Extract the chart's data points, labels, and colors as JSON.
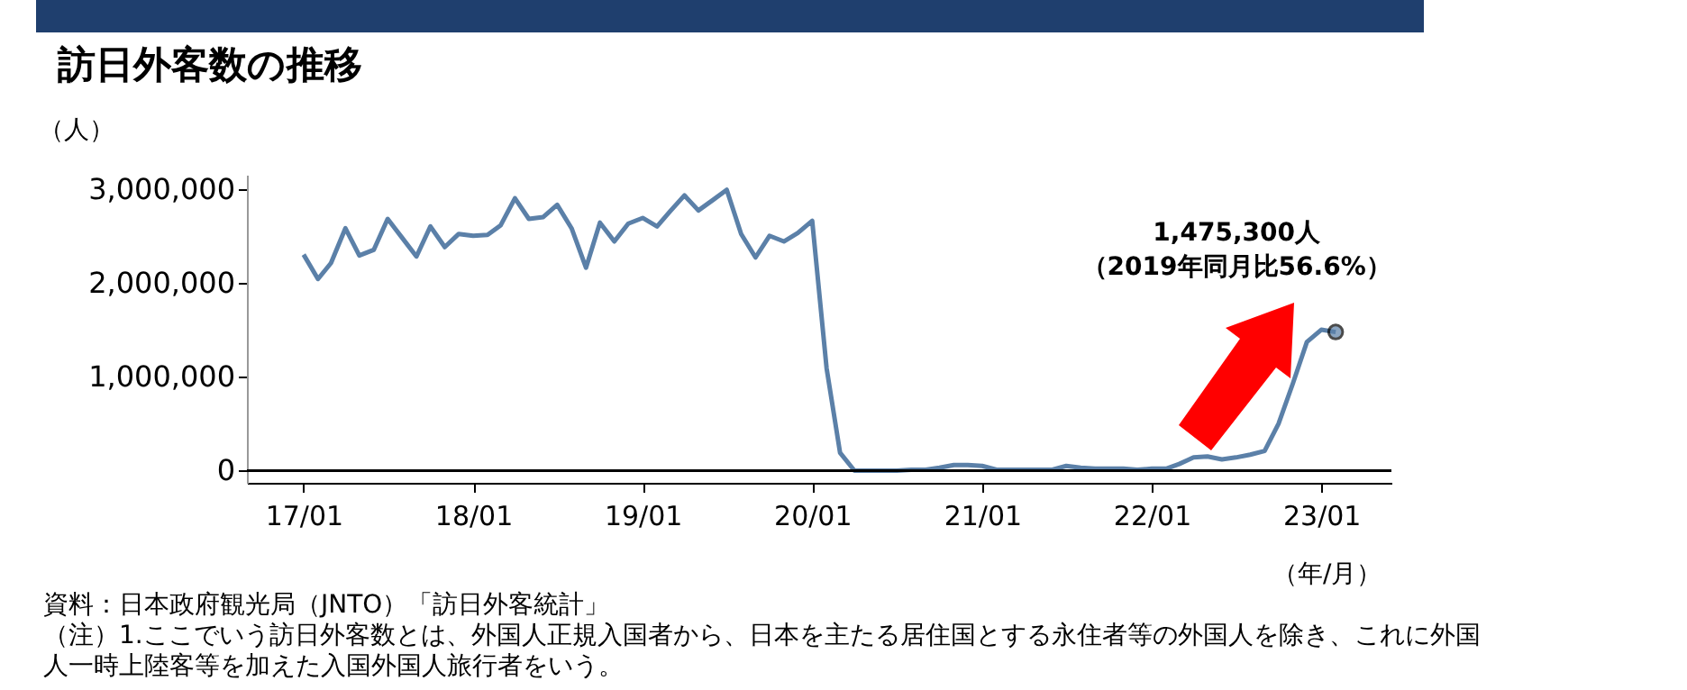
{
  "chart_data": {
    "type": "line",
    "title": "訪日外客数の推移",
    "ylabel": "（人）",
    "xlabel": "（年/月）",
    "x": [
      "2017-01",
      "2017-02",
      "2017-03",
      "2017-04",
      "2017-05",
      "2017-06",
      "2017-07",
      "2017-08",
      "2017-09",
      "2017-10",
      "2017-11",
      "2017-12",
      "2018-01",
      "2018-02",
      "2018-03",
      "2018-04",
      "2018-05",
      "2018-06",
      "2018-07",
      "2018-08",
      "2018-09",
      "2018-10",
      "2018-11",
      "2018-12",
      "2019-01",
      "2019-02",
      "2019-03",
      "2019-04",
      "2019-05",
      "2019-06",
      "2019-07",
      "2019-08",
      "2019-09",
      "2019-10",
      "2019-11",
      "2019-12",
      "2020-01",
      "2020-02",
      "2020-03",
      "2020-04",
      "2020-05",
      "2020-06",
      "2020-07",
      "2020-08",
      "2020-09",
      "2020-10",
      "2020-11",
      "2020-12",
      "2021-01",
      "2021-02",
      "2021-03",
      "2021-04",
      "2021-05",
      "2021-06",
      "2021-07",
      "2021-08",
      "2021-09",
      "2021-10",
      "2021-11",
      "2021-12",
      "2022-01",
      "2022-02",
      "2022-03",
      "2022-04",
      "2022-05",
      "2022-06",
      "2022-07",
      "2022-08",
      "2022-09",
      "2022-10",
      "2022-11",
      "2022-12",
      "2023-01",
      "2023-02"
    ],
    "series": [
      {
        "color": "#5b80a8",
        "values": [
          2300000,
          2040000,
          2210000,
          2580000,
          2290000,
          2350000,
          2680000,
          2480000,
          2280000,
          2600000,
          2380000,
          2520000,
          2500000,
          2510000,
          2610000,
          2900000,
          2680000,
          2700000,
          2830000,
          2580000,
          2160000,
          2640000,
          2440000,
          2630000,
          2690000,
          2600000,
          2760000,
          2930000,
          2770000,
          2880000,
          2990000,
          2520000,
          2270000,
          2500000,
          2440000,
          2530000,
          2660000,
          1090000,
          190000,
          0,
          0,
          0,
          0,
          10000,
          10000,
          30000,
          60000,
          60000,
          50000,
          10000,
          10000,
          10000,
          10000,
          10000,
          50000,
          30000,
          20000,
          20000,
          20000,
          10000,
          20000,
          20000,
          70000,
          140000,
          150000,
          120000,
          140000,
          170000,
          210000,
          500000,
          930000,
          1370000,
          1500000,
          1475300
        ]
      },
      {
        "type": "scatter",
        "marker": "circle",
        "color": "#5b80a8",
        "x": [
          "2023-02"
        ],
        "values": [
          1475300
        ]
      }
    ],
    "xlim": [
      "2016-09",
      "2023-06"
    ],
    "xticks": [
      {
        "value": "2017-01",
        "label": "17/01"
      },
      {
        "value": "2018-01",
        "label": "18/01"
      },
      {
        "value": "2019-01",
        "label": "19/01"
      },
      {
        "value": "2020-01",
        "label": "20/01"
      },
      {
        "value": "2021-01",
        "label": "21/01"
      },
      {
        "value": "2022-01",
        "label": "22/01"
      },
      {
        "value": "2023-01",
        "label": "23/01"
      }
    ],
    "ylim": [
      -130000,
      3150000
    ],
    "yticks": [
      {
        "value": 0,
        "label": "0"
      },
      {
        "value": 1000000,
        "label": "1,000,000"
      },
      {
        "value": 2000000,
        "label": "2,000,000"
      },
      {
        "value": 3000000,
        "label": "3,000,000"
      }
    ],
    "ref_lines": [
      {
        "axis": "y",
        "value": 0,
        "color": "#000000"
      }
    ],
    "annotations": [
      "1,475,300人",
      "（2019年同月比56.6%）",
      "資料：日本政府観光局（JNTO）「訪日外客統計」",
      "（注）1.ここでいう訪日外客数とは、外国人正規入国者から、日本を主たる居住国とする永住者等の外国人を除き、これに外国人一時上陸客等を加えた入国外国人旅行者をいう。"
    ]
  }
}
